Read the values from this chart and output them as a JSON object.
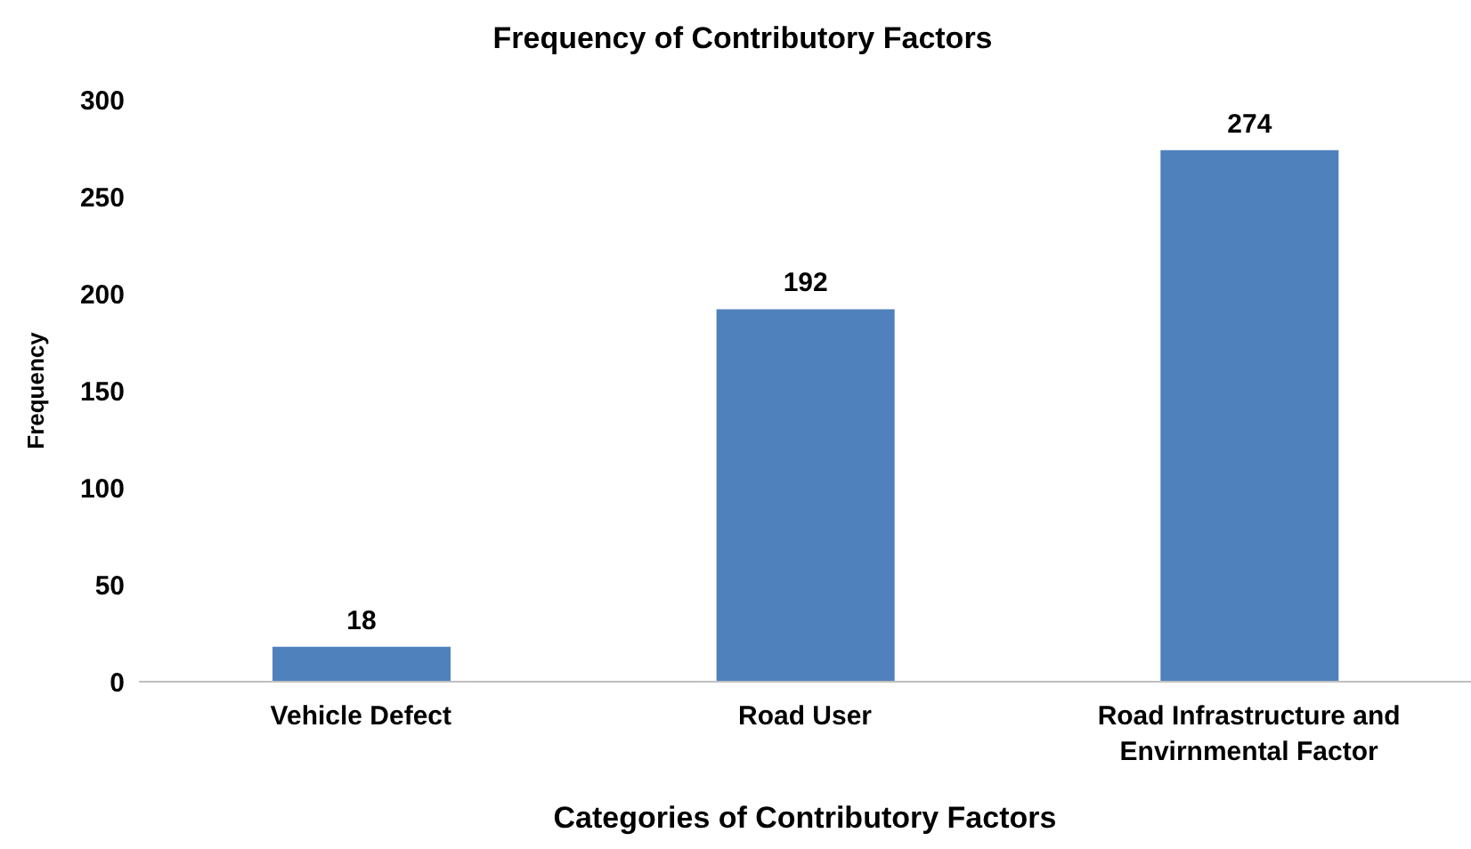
{
  "chart_data": {
    "type": "bar",
    "title": "Frequency of Contributory Factors",
    "xlabel": "Categories of Contributory Factors",
    "ylabel": "Frequency",
    "categories": [
      "Vehicle Defect",
      "Road User",
      "Road Infrastructure and Envirnmental Factor"
    ],
    "values": [
      18,
      192,
      274
    ],
    "color": "#4f81bd",
    "ylim": [
      0,
      300
    ],
    "yticks": [
      0,
      50,
      100,
      150,
      200,
      250,
      300
    ],
    "grid": false,
    "data_labels": true,
    "legend": false
  }
}
